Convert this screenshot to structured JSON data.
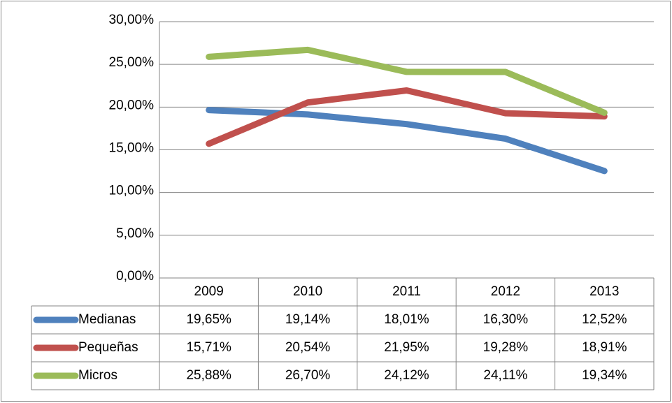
{
  "chart_data": {
    "type": "line",
    "categories": [
      "2009",
      "2010",
      "2011",
      "2012",
      "2013"
    ],
    "series": [
      {
        "name": "Medianas",
        "color": "#4f81bd",
        "values": [
          19.65,
          19.14,
          18.01,
          16.3,
          12.52
        ],
        "value_labels": [
          "19,65%",
          "19,14%",
          "18,01%",
          "16,30%",
          "12,52%"
        ]
      },
      {
        "name": "Pequeñas",
        "color": "#c0504d",
        "values": [
          15.71,
          20.54,
          21.95,
          19.28,
          18.91
        ],
        "value_labels": [
          "15,71%",
          "20,54%",
          "21,95%",
          "19,28%",
          "18,91%"
        ]
      },
      {
        "name": "Micros",
        "color": "#9bbb59",
        "values": [
          25.88,
          26.7,
          24.12,
          24.11,
          19.34
        ],
        "value_labels": [
          "25,88%",
          "26,70%",
          "24,12%",
          "24,11%",
          "19,34%"
        ]
      }
    ],
    "ylim": [
      0,
      30
    ],
    "yticks": [
      {
        "value": 0,
        "label": "0,00%"
      },
      {
        "value": 5,
        "label": "5,00%"
      },
      {
        "value": 10,
        "label": "10,00%"
      },
      {
        "value": 15,
        "label": "15,00%"
      },
      {
        "value": 20,
        "label": "20,00%"
      },
      {
        "value": 25,
        "label": "25,00%"
      },
      {
        "value": 30,
        "label": "30,00%"
      }
    ],
    "grid": true,
    "data_table": true
  }
}
